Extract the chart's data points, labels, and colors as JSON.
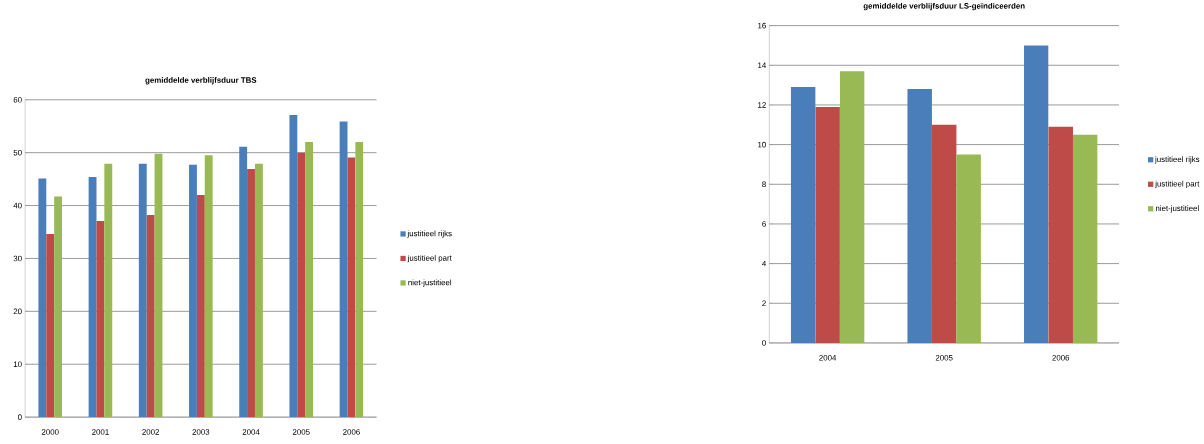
{
  "chart_data": [
    {
      "type": "bar",
      "title": "gemiddelde verblijfsduur TBS",
      "categories": [
        "2000",
        "2001",
        "2002",
        "2003",
        "2004",
        "2005",
        "2006"
      ],
      "series": [
        {
          "name": "justitieel rijks",
          "color": "#4a7ebb",
          "values": [
            45.1,
            45.4,
            47.9,
            47.7,
            51.1,
            57.1,
            55.9
          ]
        },
        {
          "name": "justitieel part",
          "color": "#be4b48",
          "values": [
            34.6,
            37.1,
            38.2,
            42.0,
            46.9,
            50.0,
            49.1
          ]
        },
        {
          "name": "niet-justitieel",
          "color": "#98b954",
          "values": [
            41.7,
            47.9,
            49.8,
            49.5,
            47.9,
            52.0,
            52.0
          ]
        }
      ],
      "ylim": [
        0,
        60
      ],
      "yticks": [
        0,
        10,
        20,
        30,
        40,
        50,
        60
      ],
      "grid": "y",
      "legend": "right"
    },
    {
      "type": "bar",
      "title": "gemiddelde verblijfsduur LS-geïndiceerden",
      "categories": [
        "2004",
        "2005",
        "2006"
      ],
      "series": [
        {
          "name": "justitieel rijks",
          "color": "#4a7ebb",
          "values": [
            12.9,
            12.8,
            15.0
          ]
        },
        {
          "name": "justitieel part",
          "color": "#be4b48",
          "values": [
            11.9,
            11.0,
            10.9
          ]
        },
        {
          "name": "niet-justitieel",
          "color": "#98b954",
          "values": [
            13.7,
            9.5,
            10.5
          ]
        }
      ],
      "ylim": [
        0,
        16
      ],
      "yticks": [
        0,
        2,
        4,
        6,
        8,
        10,
        12,
        14,
        16
      ],
      "grid": "y",
      "legend": "right"
    }
  ]
}
